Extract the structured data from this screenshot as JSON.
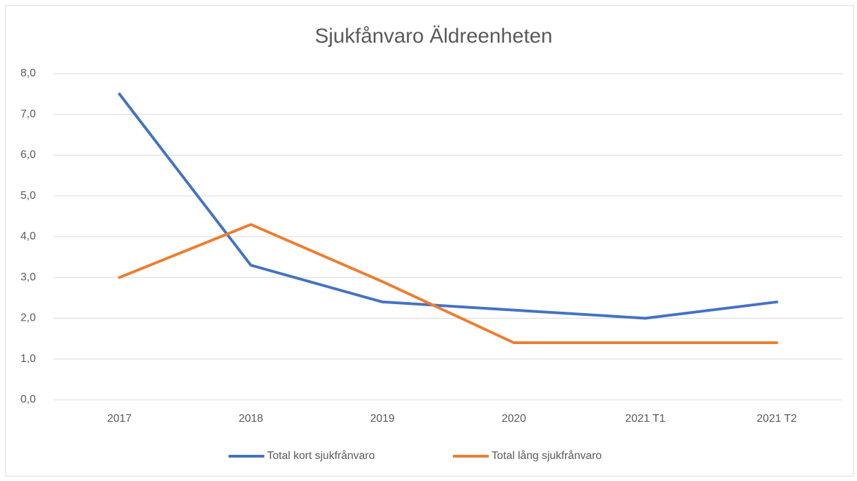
{
  "chart_data": {
    "type": "line",
    "title": "Sjukfånvaro Äldreenheten",
    "categories": [
      "2017",
      "2018",
      "2019",
      "2020",
      "2021 T1",
      "2021 T2"
    ],
    "series": [
      {
        "name": "Total kort sjukfrånvaro",
        "color": "#4472c4",
        "values": [
          7.5,
          3.3,
          2.4,
          2.2,
          2.0,
          2.4
        ]
      },
      {
        "name": "Total lång sjukfrånvaro",
        "color": "#ed7d31",
        "values": [
          3.0,
          4.3,
          2.9,
          1.4,
          1.4,
          1.4
        ]
      }
    ],
    "ylim": [
      0,
      8
    ],
    "yticks": [
      {
        "value": 0,
        "label": "0,0"
      },
      {
        "value": 1,
        "label": "1,0"
      },
      {
        "value": 2,
        "label": "2,0"
      },
      {
        "value": 3,
        "label": "3,0"
      },
      {
        "value": 4,
        "label": "4,0"
      },
      {
        "value": 5,
        "label": "5,0"
      },
      {
        "value": 6,
        "label": "6,0"
      },
      {
        "value": 7,
        "label": "7,0"
      },
      {
        "value": 8,
        "label": "8,0"
      }
    ],
    "grid": true,
    "legend": "bottom"
  }
}
